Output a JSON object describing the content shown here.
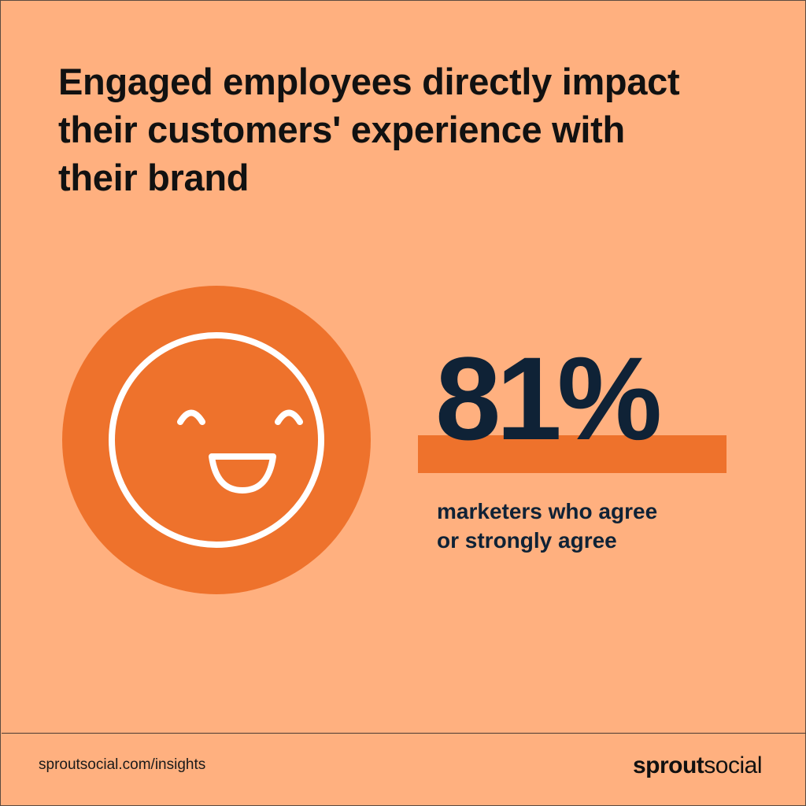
{
  "headline": {
    "line1": "Engaged employees directly impact",
    "line2": "their customers' experience with",
    "line3": "their brand"
  },
  "stat": {
    "value": "81%",
    "caption_line1": "marketers who agree",
    "caption_line2": "or strongly agree"
  },
  "footer": {
    "url": "sproutsocial.com/insights",
    "logo_bold": "sprout",
    "logo_light": "social"
  },
  "icons": {
    "main_icon": "smiley-face-icon"
  },
  "colors": {
    "background": "#ffb07f",
    "accent_orange": "#ee722c",
    "navy": "#0f2236",
    "white": "#ffffff",
    "text_dark": "#111111"
  }
}
